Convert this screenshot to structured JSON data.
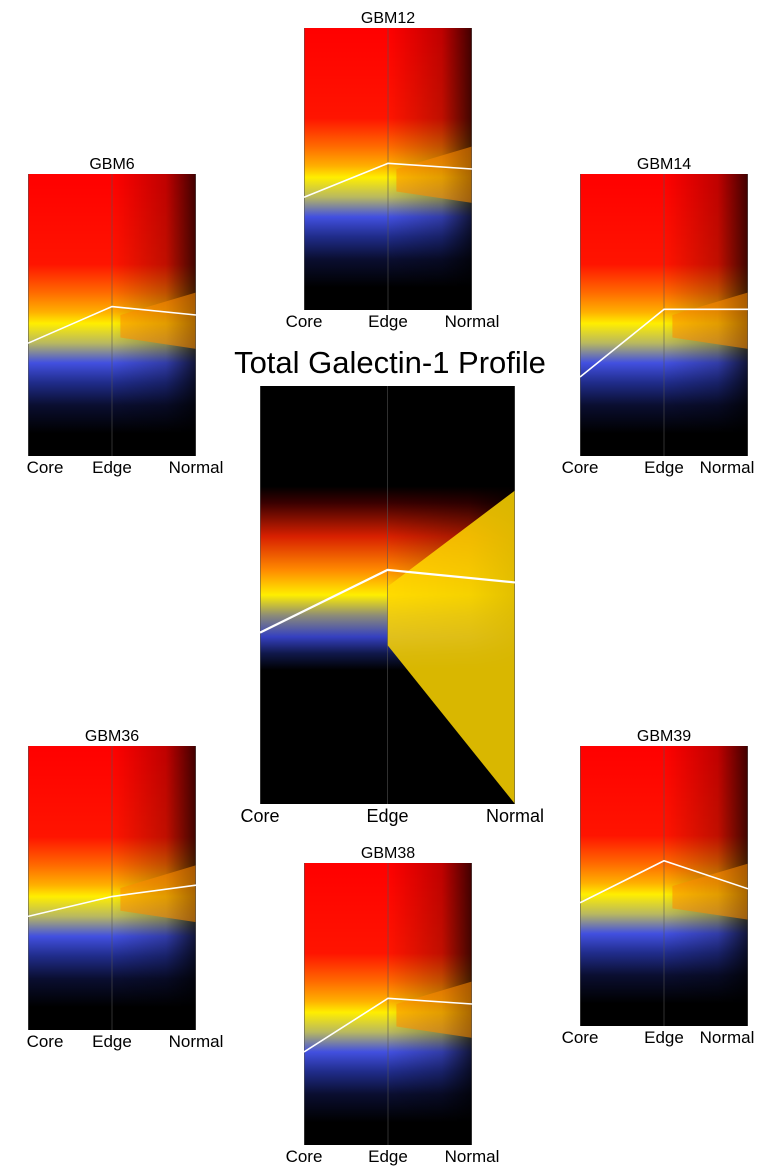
{
  "title": "Total Galectin-1 Profile",
  "chart_data": [
    {
      "type": "line",
      "title": "GBM12",
      "categories": [
        "Core",
        "Edge",
        "Normal"
      ],
      "mean_profile": [
        0.4,
        0.52,
        0.5
      ],
      "colors": {
        "high": "#ff0000",
        "mid": "#ffff00",
        "low": "#2b3bff",
        "highlight": "#ffffff"
      }
    },
    {
      "type": "line",
      "title": "GBM6",
      "categories": [
        "Core",
        "Edge",
        "Normal"
      ],
      "mean_profile": [
        0.4,
        0.53,
        0.5
      ],
      "colors": {
        "high": "#ff0000",
        "mid": "#ffff00",
        "low": "#2b3bff",
        "highlight": "#ffffff"
      }
    },
    {
      "type": "line",
      "title": "GBM14",
      "categories": [
        "Core",
        "Edge",
        "Normal"
      ],
      "mean_profile": [
        0.28,
        0.52,
        0.52
      ],
      "colors": {
        "high": "#ff0000",
        "mid": "#ffff00",
        "low": "#2b3bff",
        "highlight": "#ffffff"
      }
    },
    {
      "type": "line",
      "title": "",
      "categories": [
        "Core",
        "Edge",
        "Normal"
      ],
      "mean_profile": [
        0.41,
        0.56,
        0.53
      ],
      "colors": {
        "high": "#ff0000",
        "mid": "#ffff00",
        "low": "#2b3bff",
        "highlight": "#ffffff",
        "normal_fan": "#ffd700"
      }
    },
    {
      "type": "line",
      "title": "GBM36",
      "categories": [
        "Core",
        "Edge",
        "Normal"
      ],
      "mean_profile": [
        0.4,
        0.47,
        0.51
      ],
      "colors": {
        "high": "#ff0000",
        "mid": "#ffff00",
        "low": "#2b3bff",
        "highlight": "#ffffff"
      }
    },
    {
      "type": "line",
      "title": "GBM39",
      "categories": [
        "Core",
        "Edge",
        "Normal"
      ],
      "mean_profile": [
        0.44,
        0.59,
        0.49
      ],
      "colors": {
        "high": "#ff0000",
        "mid": "#ffff00",
        "low": "#2b3bff",
        "highlight": "#ffffff"
      }
    },
    {
      "type": "line",
      "title": "GBM38",
      "categories": [
        "Core",
        "Edge",
        "Normal"
      ],
      "mean_profile": [
        0.33,
        0.52,
        0.5
      ],
      "colors": {
        "high": "#ff0000",
        "mid": "#ffff00",
        "low": "#2b3bff",
        "highlight": "#ffffff"
      }
    }
  ]
}
